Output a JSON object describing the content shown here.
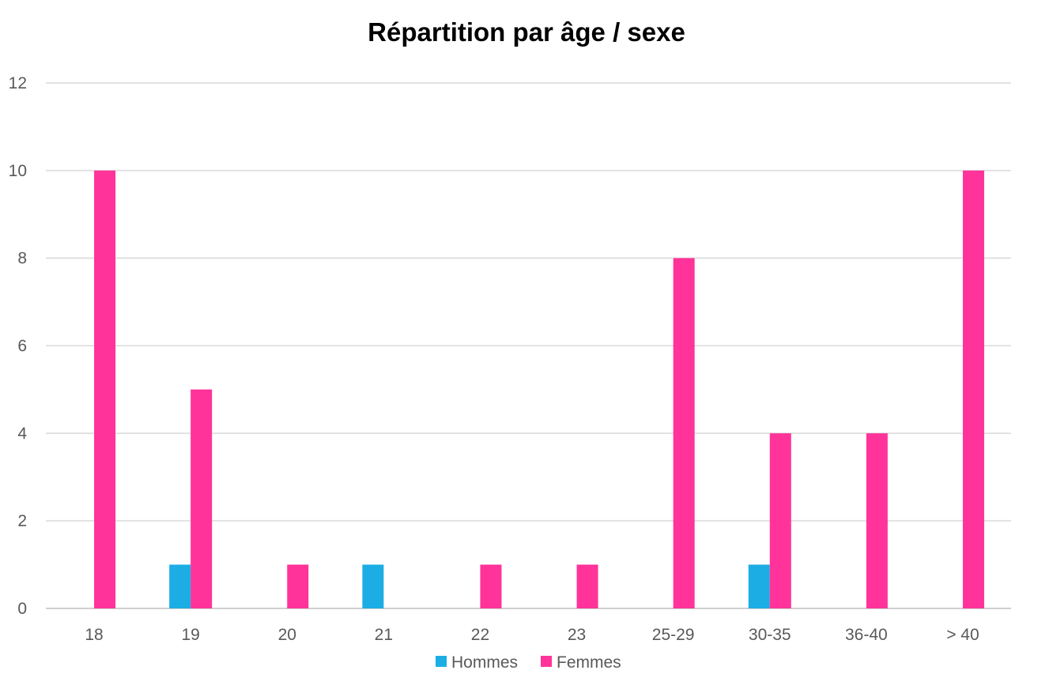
{
  "chart_data": {
    "type": "bar",
    "title": "Répartition par âge / sexe",
    "xlabel": "",
    "ylabel": "",
    "categories": [
      "18",
      "19",
      "20",
      "21",
      "22",
      "23",
      "25-29",
      "30-35",
      "36-40",
      "> 40"
    ],
    "series": [
      {
        "name": "Hommes",
        "color": "#1cade4",
        "values": [
          0,
          1,
          0,
          1,
          0,
          0,
          0,
          1,
          0,
          0
        ]
      },
      {
        "name": "Femmes",
        "color": "#ff3399",
        "values": [
          10,
          5,
          1,
          0,
          1,
          1,
          8,
          4,
          4,
          10
        ]
      }
    ],
    "ylim": [
      0,
      12
    ],
    "yticks": [
      0,
      2,
      4,
      6,
      8,
      10,
      12
    ],
    "grid": true,
    "legend": "bottom"
  }
}
